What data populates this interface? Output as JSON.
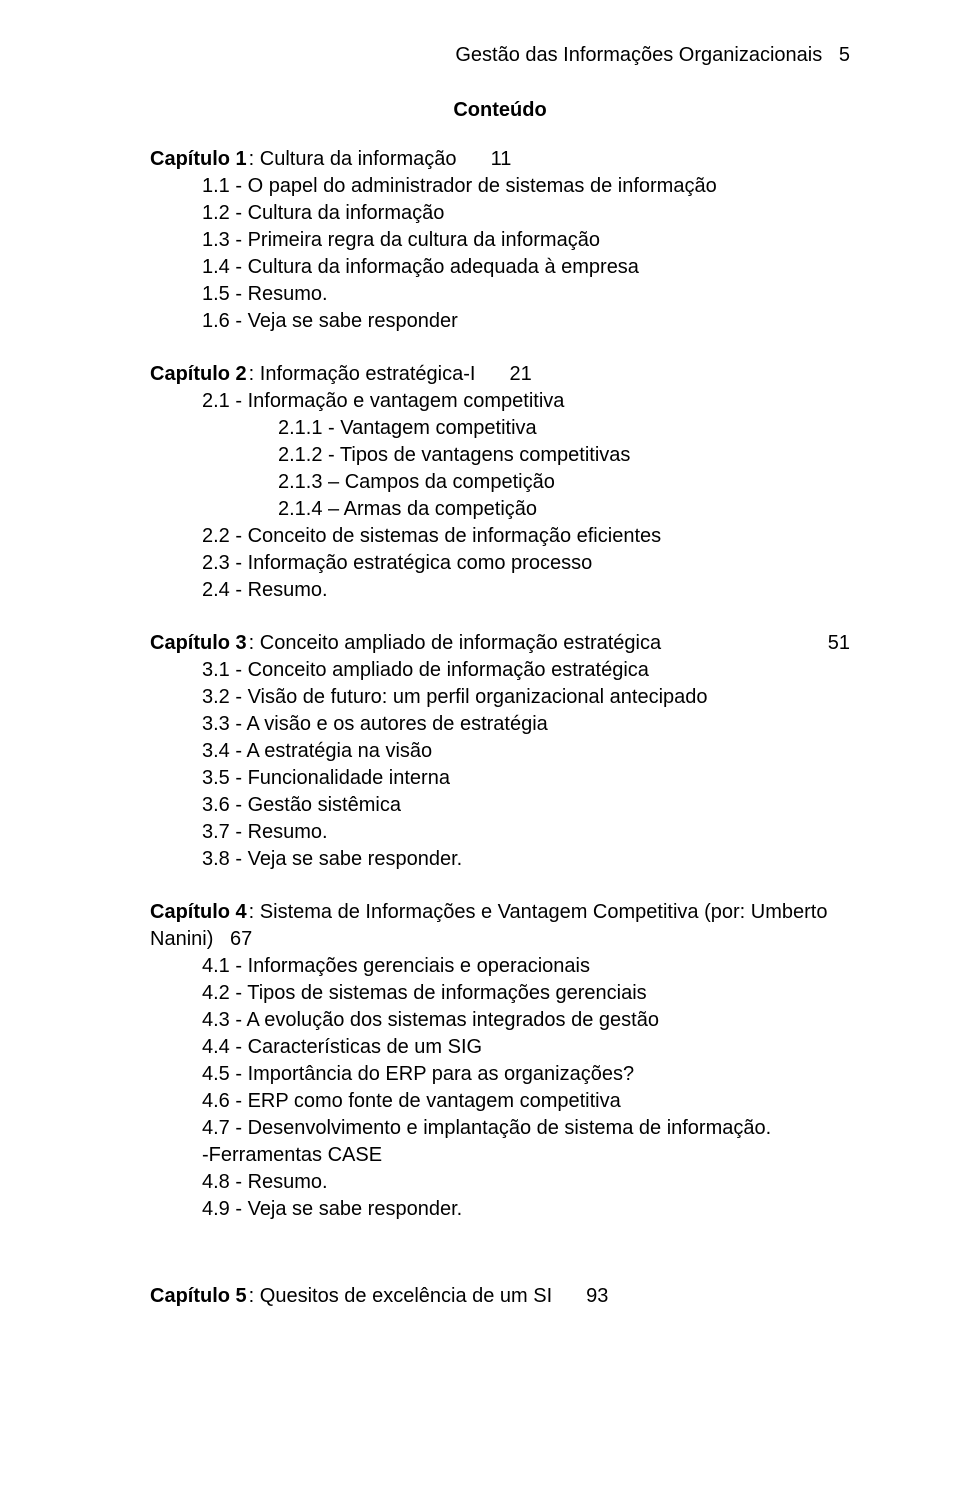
{
  "header": {
    "running_title": "Gestão das Informações Organizacionais",
    "page_number": "5"
  },
  "content_title": "Conteúdo",
  "chapters": [
    {
      "label": "Capítulo 1",
      "title": ": Cultura da informação",
      "page": "11",
      "items_lvl1": [
        "1.1 - O papel do administrador de sistemas de informação",
        "1.2 - Cultura da informação",
        "1.3 - Primeira regra da cultura da informação",
        "1.4 - Cultura da informação adequada à empresa",
        "1.5 - Resumo.",
        "1.6 - Veja se sabe responder"
      ]
    },
    {
      "label": "Capítulo 2",
      "title": ": Informação estratégica-I",
      "page": "21",
      "items_lvl1_a": [
        "2.1 - Informação e vantagem competitiva"
      ],
      "items_lvl2": [
        "2.1.1 - Vantagem competitiva",
        "2.1.2 - Tipos de vantagens competitivas",
        "2.1.3 – Campos da competição",
        "2.1.4 – Armas da competição"
      ],
      "items_lvl1_b": [
        "2.2 - Conceito de sistemas de informação eficientes",
        "2.3 - Informação estratégica como processo",
        "2.4 - Resumo."
      ]
    },
    {
      "label": "Capítulo 3",
      "title": ": Conceito ampliado de informação estratégica",
      "page": "51",
      "page_right": true,
      "items_lvl1": [
        "3.1 - Conceito ampliado de informação estratégica",
        "3.2 - Visão de futuro: um perfil organizacional antecipado",
        "3.3 - A visão e os autores de estratégia",
        "3.4 - A estratégia na visão",
        "3.5 - Funcionalidade interna",
        "3.6 - Gestão sistêmica",
        "3.7 - Resumo.",
        "3.8 - Veja se sabe responder."
      ]
    },
    {
      "label": "Capítulo 4",
      "title_line1": ": Sistema de Informações e Vantagem Competitiva (por: Umberto",
      "title_line2": "Nanini)",
      "page_after_line2": "67",
      "items_lvl1": [
        "4.1 - Informações gerenciais e operacionais",
        "4.2 - Tipos de sistemas de informações gerenciais",
        "4.3 - A evolução dos sistemas integrados de gestão",
        "4.4 - Características de um SIG",
        "4.5 - Importância do ERP para as organizações?",
        "4.6 - ERP como fonte de vantagem competitiva",
        "4.7 - Desenvolvimento e implantação de sistema de informação.",
        "-Ferramentas CASE",
        "4.8 - Resumo.",
        "4.9 - Veja se sabe responder."
      ]
    }
  ],
  "chapter5": {
    "label": "Capítulo 5",
    "title": ": Quesitos de excelência de um SI",
    "page": "93"
  }
}
